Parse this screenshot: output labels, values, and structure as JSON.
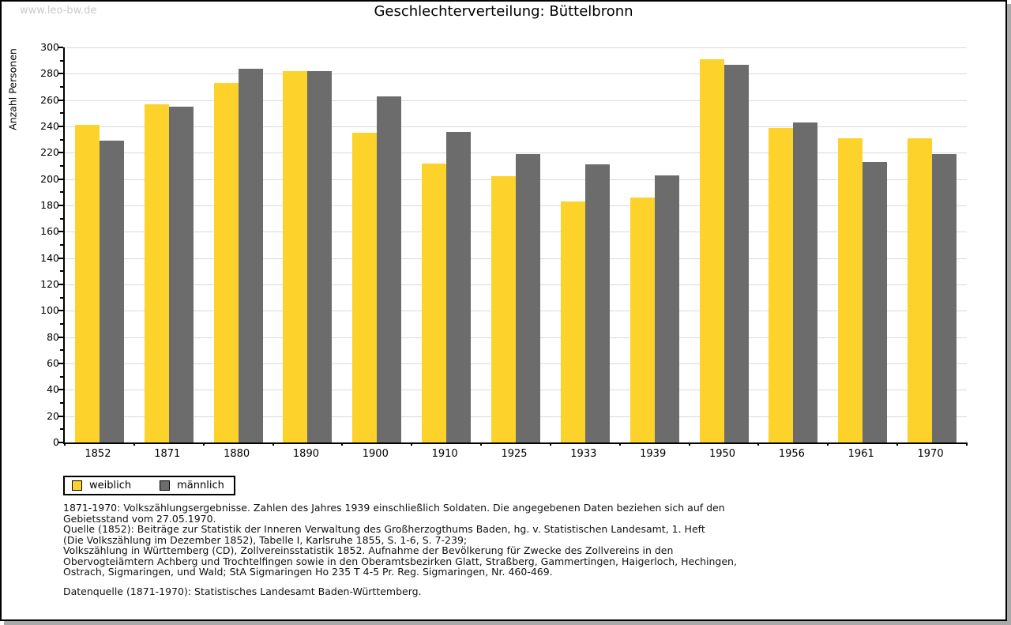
{
  "watermark": "www.leo-bw.de",
  "title": "Geschlechterverteilung: Büttelbronn",
  "chart_data": {
    "type": "bar",
    "title": "Geschlechterverteilung: Büttelbronn",
    "xlabel": "",
    "ylabel": "Anzahl Personen",
    "ylim": [
      0,
      300
    ],
    "ytick_step": 20,
    "minor_tick_step": 10,
    "grid": true,
    "legend_position": "bottom-left",
    "categories": [
      "1852",
      "1871",
      "1880",
      "1890",
      "1900",
      "1910",
      "1925",
      "1933",
      "1939",
      "1950",
      "1956",
      "1961",
      "1970"
    ],
    "series": [
      {
        "name": "weiblich",
        "color": "#fcd22b",
        "values": [
          241,
          257,
          273,
          282,
          235,
          212,
          202,
          183,
          186,
          291,
          239,
          231,
          231
        ]
      },
      {
        "name": "männlich",
        "color": "#6c6c6c",
        "values": [
          229,
          255,
          284,
          282,
          263,
          236,
          219,
          211,
          203,
          287,
          243,
          213,
          219
        ]
      }
    ]
  },
  "legend": {
    "items": [
      {
        "label": "weiblich",
        "color": "#fcd22b"
      },
      {
        "label": "männlich",
        "color": "#6c6c6c"
      }
    ]
  },
  "footnotes": {
    "lines": [
      "1871-1970: Volkszählungsergebnisse. Zahlen des Jahres 1939 einschließlich Soldaten. Die angegebenen Daten beziehen sich auf den",
      "Gebietsstand vom 27.05.1970.",
      "Quelle (1852): Beiträge zur Statistik der Inneren Verwaltung des Großherzogthums Baden, hg. v. Statistischen Landesamt, 1. Heft",
      "(Die Volkszählung im Dezember 1852), Tabelle I, Karlsruhe 1855, S. 1-6, S. 7-239;",
      "Volkszählung in Württemberg (CD), Zollvereinsstatistik 1852. Aufnahme der Bevölkerung für Zwecke des Zollvereins in den",
      "Obervogteiämtern Achberg und Trochtelfingen sowie in den Oberamtsbezirken Glatt, Straßberg, Gammertingen, Haigerloch, Hechingen,",
      "Ostrach, Sigmaringen, und Wald; StA Sigmaringen Ho 235 T 4-5 Pr. Reg. Sigmaringen, Nr. 460-469."
    ],
    "datasource": "Datenquelle (1871-1970): Statistisches Landesamt Baden-Württemberg."
  },
  "colors": {
    "gridline": "#d9d9d9",
    "axis": "#000000",
    "watermark": "#c9c9c9",
    "frame_shadow": "#a9a9a9"
  }
}
